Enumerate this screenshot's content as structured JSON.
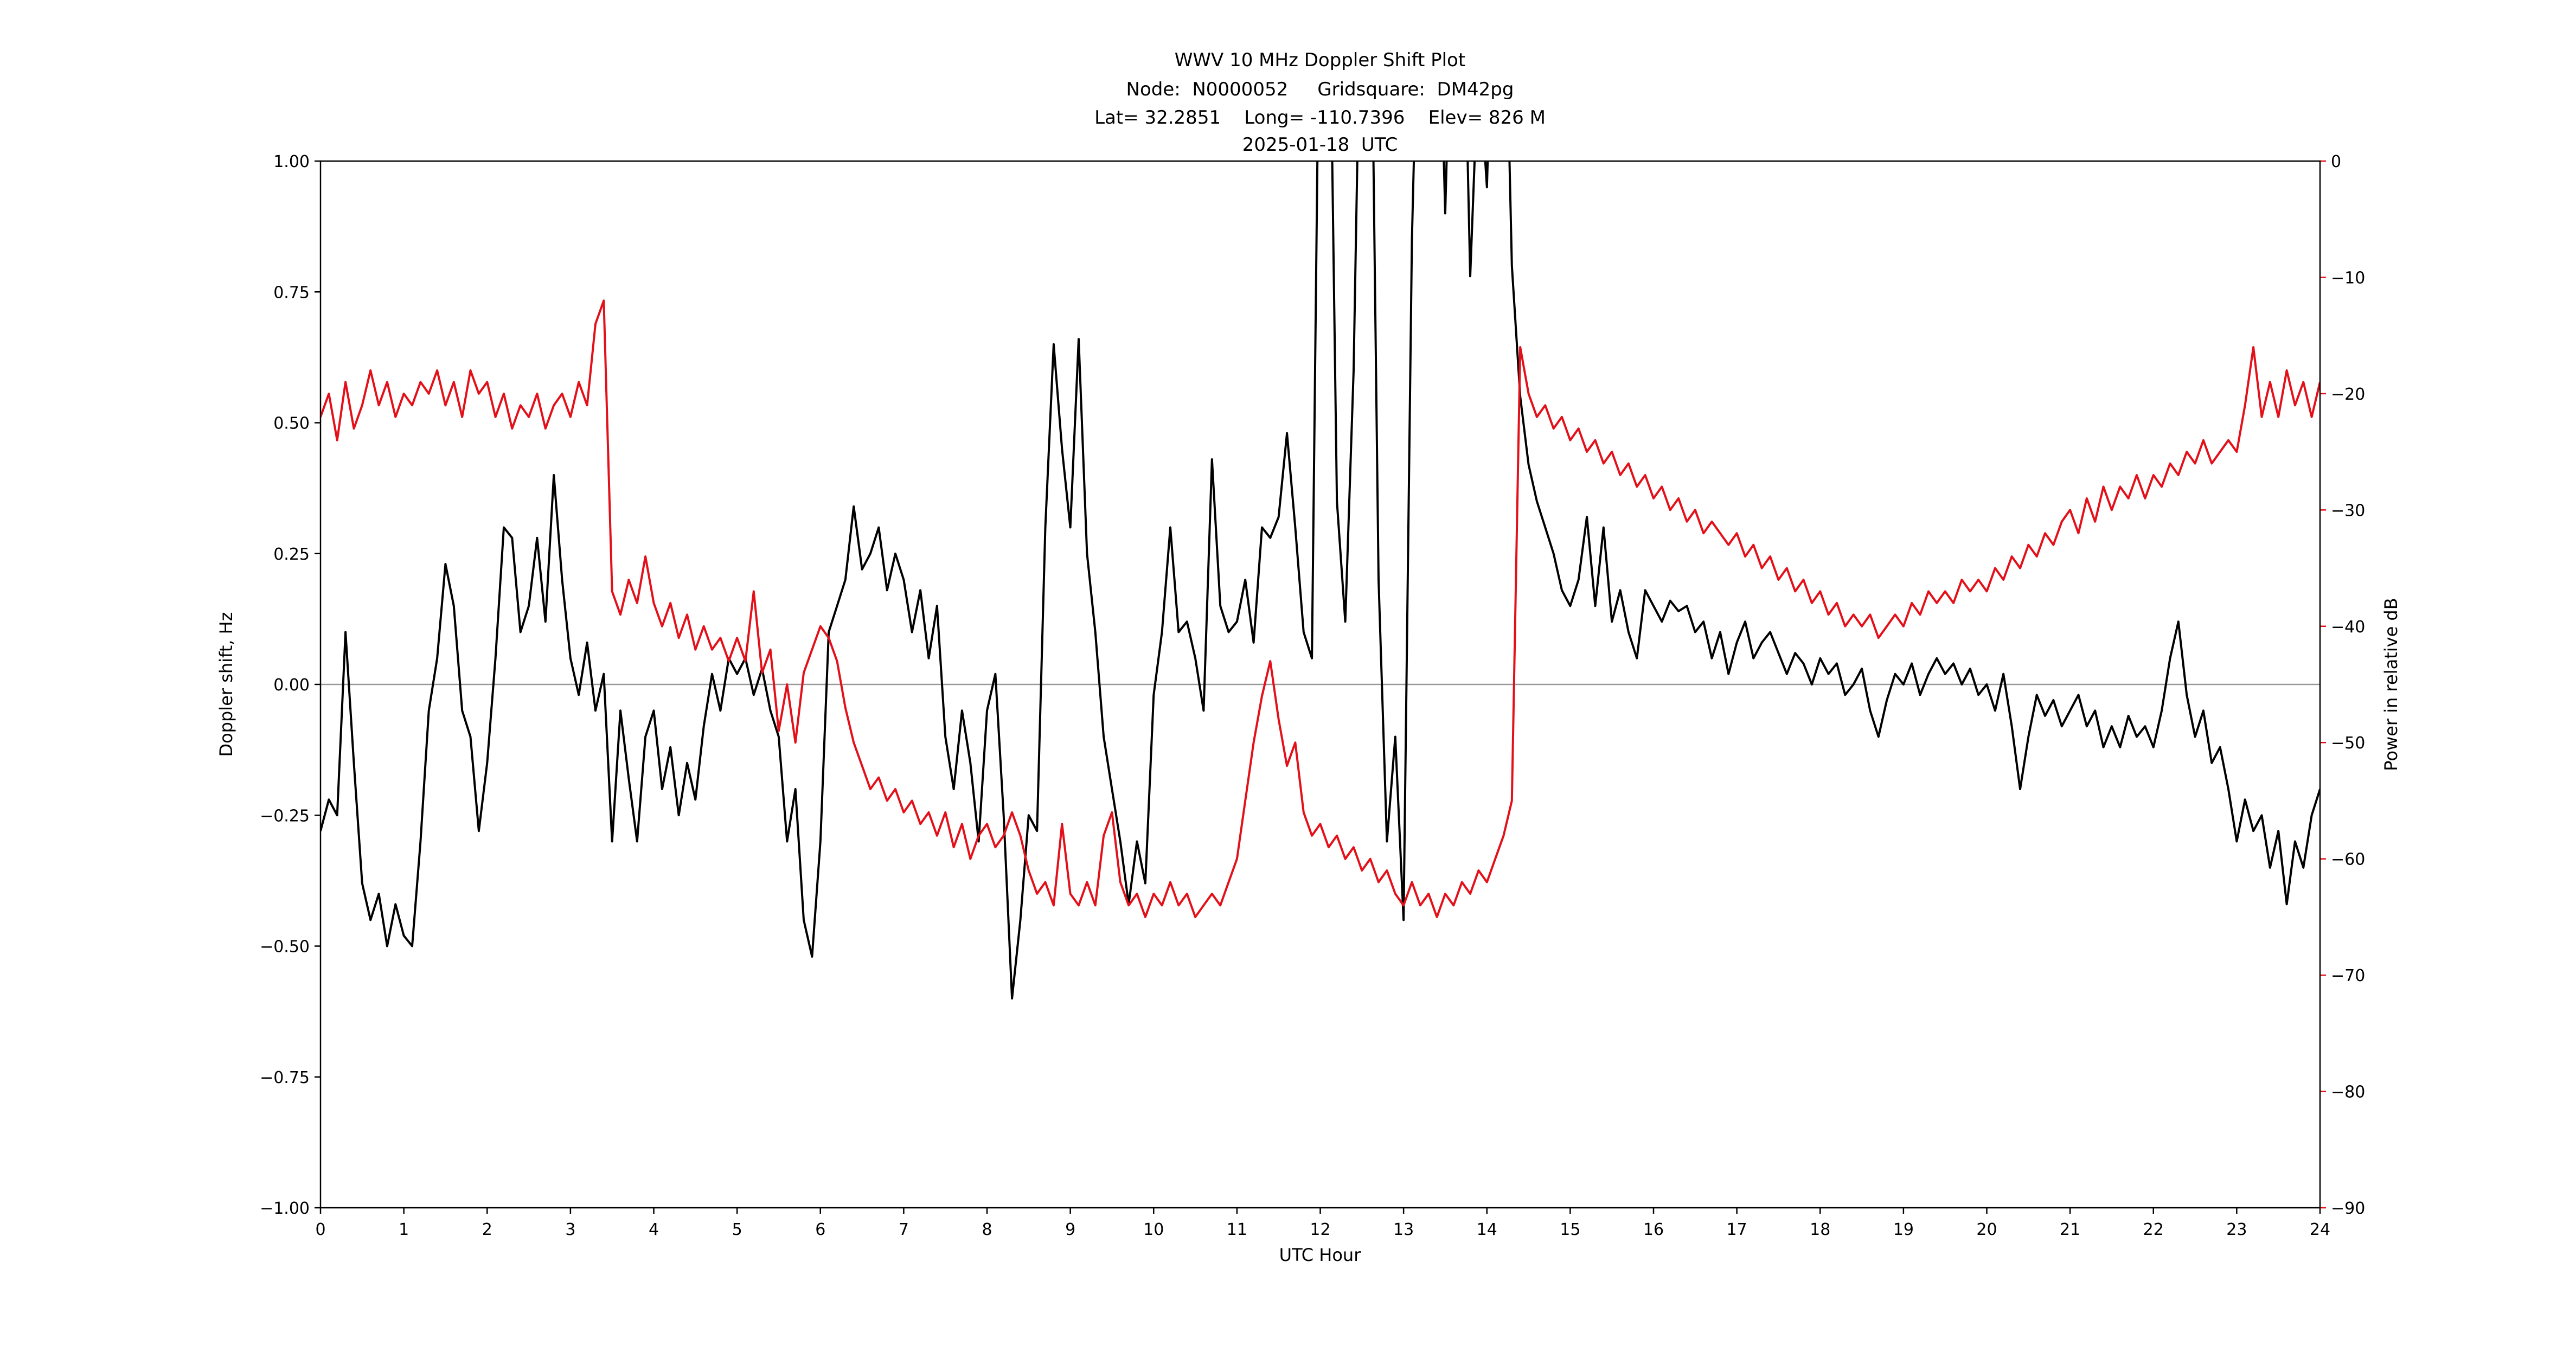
{
  "chart_data": {
    "type": "line",
    "title": "WWV 10 MHz Doppler Shift Plot",
    "subtitle_lines": [
      "Node:  N0000052     Gridsquare:  DM42pg",
      "Lat= 32.2851    Long= -110.7396    Elev= 826 M",
      "2025-01-18  UTC"
    ],
    "xlabel": "UTC Hour",
    "ylabel_left": "Doppler shift, Hz",
    "ylabel_right": "Power in relative dB",
    "x_range": [
      0,
      24
    ],
    "y_left_range": [
      -1.0,
      1.0
    ],
    "y_right_range": [
      -90,
      0
    ],
    "grid": false,
    "legend": "none",
    "zero_line_y": 0.0,
    "colors": {
      "doppler": "#000000",
      "power": "#e41019",
      "zero_line": "#999999",
      "spine": "#000000"
    },
    "x_ticks": {
      "values": [
        0,
        1,
        2,
        3,
        4,
        5,
        6,
        7,
        8,
        9,
        10,
        11,
        12,
        13,
        14,
        15,
        16,
        17,
        18,
        19,
        20,
        21,
        22,
        23,
        24
      ],
      "labels": [
        "0",
        "1",
        "2",
        "3",
        "4",
        "5",
        "6",
        "7",
        "8",
        "9",
        "10",
        "11",
        "12",
        "13",
        "14",
        "15",
        "16",
        "17",
        "18",
        "19",
        "20",
        "21",
        "22",
        "23",
        "24"
      ]
    },
    "y_left_ticks": {
      "values": [
        -1.0,
        -0.75,
        -0.5,
        -0.25,
        0.0,
        0.25,
        0.5,
        0.75,
        1.0
      ],
      "labels": [
        "−1.00",
        "−0.75",
        "−0.50",
        "−0.25",
        "0.00",
        "0.25",
        "0.50",
        "0.75",
        "1.00"
      ]
    },
    "y_right_ticks": {
      "values": [
        0,
        -10,
        -20,
        -30,
        -40,
        -50,
        -60,
        -70,
        -80,
        -90
      ],
      "labels": [
        "0",
        "−10",
        "−20",
        "−30",
        "−40",
        "−50",
        "−60",
        "−70",
        "−80",
        "−90"
      ]
    },
    "x_start": 0,
    "x_step": 0.1,
    "series": [
      {
        "name": "Doppler shift",
        "axis": "left",
        "unit": "Hz",
        "color_key": "doppler",
        "values": [
          -0.28,
          -0.22,
          -0.25,
          0.1,
          -0.15,
          -0.38,
          -0.45,
          -0.4,
          -0.5,
          -0.42,
          -0.48,
          -0.5,
          -0.3,
          -0.05,
          0.05,
          0.23,
          0.15,
          -0.05,
          -0.1,
          -0.28,
          -0.15,
          0.05,
          0.3,
          0.28,
          0.1,
          0.15,
          0.28,
          0.12,
          0.4,
          0.2,
          0.05,
          -0.02,
          0.08,
          -0.05,
          0.02,
          -0.3,
          -0.05,
          -0.18,
          -0.3,
          -0.1,
          -0.05,
          -0.2,
          -0.12,
          -0.25,
          -0.15,
          -0.22,
          -0.08,
          0.02,
          -0.05,
          0.05,
          0.02,
          0.05,
          -0.02,
          0.03,
          -0.05,
          -0.1,
          -0.3,
          -0.2,
          -0.45,
          -0.52,
          -0.3,
          0.1,
          0.15,
          0.2,
          0.34,
          0.22,
          0.25,
          0.3,
          0.18,
          0.25,
          0.2,
          0.1,
          0.18,
          0.05,
          0.15,
          -0.1,
          -0.2,
          -0.05,
          -0.15,
          -0.3,
          -0.05,
          0.02,
          -0.25,
          -0.6,
          -0.45,
          -0.25,
          -0.28,
          0.3,
          0.65,
          0.45,
          0.3,
          0.66,
          0.25,
          0.1,
          -0.1,
          -0.2,
          -0.3,
          -0.42,
          -0.3,
          -0.38,
          -0.02,
          0.1,
          0.3,
          0.1,
          0.12,
          0.05,
          -0.05,
          0.43,
          0.15,
          0.1,
          0.12,
          0.2,
          0.08,
          0.3,
          0.28,
          0.32,
          0.48,
          0.3,
          0.1,
          0.05,
          1.5,
          1.5,
          0.35,
          0.12,
          0.6,
          1.5,
          1.5,
          0.2,
          -0.3,
          -0.1,
          -0.45,
          0.85,
          1.5,
          1.5,
          1.5,
          0.9,
          1.5,
          1.5,
          0.78,
          1.2,
          0.95,
          1.5,
          1.5,
          0.8,
          0.55,
          0.42,
          0.35,
          0.3,
          0.25,
          0.18,
          0.15,
          0.2,
          0.32,
          0.15,
          0.3,
          0.12,
          0.18,
          0.1,
          0.05,
          0.18,
          0.15,
          0.12,
          0.16,
          0.14,
          0.15,
          0.1,
          0.12,
          0.05,
          0.1,
          0.02,
          0.08,
          0.12,
          0.05,
          0.08,
          0.1,
          0.06,
          0.02,
          0.06,
          0.04,
          0.0,
          0.05,
          0.02,
          0.04,
          -0.02,
          0.0,
          0.03,
          -0.05,
          -0.1,
          -0.03,
          0.02,
          0.0,
          0.04,
          -0.02,
          0.02,
          0.05,
          0.02,
          0.04,
          0.0,
          0.03,
          -0.02,
          0.0,
          -0.05,
          0.02,
          -0.08,
          -0.2,
          -0.1,
          -0.02,
          -0.06,
          -0.03,
          -0.08,
          -0.05,
          -0.02,
          -0.08,
          -0.05,
          -0.12,
          -0.08,
          -0.12,
          -0.06,
          -0.1,
          -0.08,
          -0.12,
          -0.05,
          0.05,
          0.12,
          -0.02,
          -0.1,
          -0.05,
          -0.15,
          -0.12,
          -0.2,
          -0.3,
          -0.22,
          -0.28,
          -0.25,
          -0.35,
          -0.28,
          -0.42,
          -0.3,
          -0.35,
          -0.25,
          -0.2
        ]
      },
      {
        "name": "Power",
        "axis": "right",
        "unit": "relative dB",
        "color_key": "power",
        "values": [
          -22,
          -20,
          -24,
          -19,
          -23,
          -21,
          -18,
          -21,
          -19,
          -22,
          -20,
          -21,
          -19,
          -20,
          -18,
          -21,
          -19,
          -22,
          -18,
          -20,
          -19,
          -22,
          -20,
          -23,
          -21,
          -22,
          -20,
          -23,
          -21,
          -20,
          -22,
          -19,
          -21,
          -14,
          -12,
          -37,
          -39,
          -36,
          -38,
          -34,
          -38,
          -40,
          -38,
          -41,
          -39,
          -42,
          -40,
          -42,
          -41,
          -43,
          -41,
          -43,
          -37,
          -44,
          -42,
          -49,
          -45,
          -50,
          -44,
          -42,
          -40,
          -41,
          -43,
          -47,
          -50,
          -52,
          -54,
          -53,
          -55,
          -54,
          -56,
          -55,
          -57,
          -56,
          -58,
          -56,
          -59,
          -57,
          -60,
          -58,
          -57,
          -59,
          -58,
          -56,
          -58,
          -61,
          -63,
          -62,
          -64,
          -57,
          -63,
          -64,
          -62,
          -64,
          -58,
          -56,
          -62,
          -64,
          -63,
          -65,
          -63,
          -64,
          -62,
          -64,
          -63,
          -65,
          -64,
          -63,
          -64,
          -62,
          -60,
          -55,
          -50,
          -46,
          -43,
          -48,
          -52,
          -50,
          -56,
          -58,
          -57,
          -59,
          -58,
          -60,
          -59,
          -61,
          -60,
          -62,
          -61,
          -63,
          -64,
          -62,
          -64,
          -63,
          -65,
          -63,
          -64,
          -62,
          -63,
          -61,
          -62,
          -60,
          -58,
          -55,
          -16,
          -20,
          -22,
          -21,
          -23,
          -22,
          -24,
          -23,
          -25,
          -24,
          -26,
          -25,
          -27,
          -26,
          -28,
          -27,
          -29,
          -28,
          -30,
          -29,
          -31,
          -30,
          -32,
          -31,
          -32,
          -33,
          -32,
          -34,
          -33,
          -35,
          -34,
          -36,
          -35,
          -37,
          -36,
          -38,
          -37,
          -39,
          -38,
          -40,
          -39,
          -40,
          -39,
          -41,
          -40,
          -39,
          -40,
          -38,
          -39,
          -37,
          -38,
          -37,
          -38,
          -36,
          -37,
          -36,
          -37,
          -35,
          -36,
          -34,
          -35,
          -33,
          -34,
          -32,
          -33,
          -31,
          -30,
          -32,
          -29,
          -31,
          -28,
          -30,
          -28,
          -29,
          -27,
          -29,
          -27,
          -28,
          -26,
          -27,
          -25,
          -26,
          -24,
          -26,
          -25,
          -24,
          -25,
          -21,
          -16,
          -22,
          -19,
          -22,
          -18,
          -21,
          -19,
          -22,
          -19
        ]
      }
    ]
  }
}
